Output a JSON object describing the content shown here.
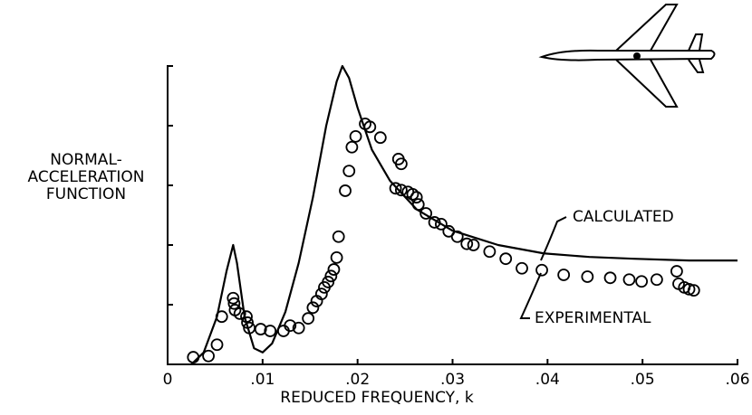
{
  "chart_data": {
    "type": "line",
    "xlabel": "REDUCED FREQUENCY, k",
    "ylabel_lines": [
      "NORMAL-",
      "ACCELERATION",
      "FUNCTION"
    ],
    "xlim": [
      0,
      0.06
    ],
    "ylim": [
      0,
      5
    ],
    "xticks": [
      0,
      {
        "value": 0.01,
        "label": ".01"
      },
      {
        "value": 0.02,
        "label": ".02"
      },
      {
        "value": 0.03,
        "label": ".03"
      },
      {
        "value": 0.04,
        "label": ".04"
      },
      {
        "value": 0.05,
        "label": ".05"
      },
      {
        "value": 0.06,
        "label": ".06"
      }
    ],
    "yticks": [
      0,
      1,
      2,
      3,
      4,
      5
    ],
    "grid": false,
    "series": [
      {
        "name": "CALCULATED",
        "color": "#000000",
        "marker": "none",
        "x": [
          0.0025,
          0.0038,
          0.0052,
          0.0062,
          0.0069,
          0.0073,
          0.0081,
          0.0091,
          0.01,
          0.011,
          0.0124,
          0.0138,
          0.0153,
          0.0167,
          0.0178,
          0.0184,
          0.0191,
          0.02,
          0.0215,
          0.0234,
          0.0262,
          0.03,
          0.0348,
          0.0396,
          0.0444,
          0.0491,
          0.0549,
          0.06
        ],
        "values": [
          0,
          0.2,
          0.8,
          1.56,
          2.0,
          1.7,
          0.8,
          0.27,
          0.2,
          0.35,
          0.88,
          1.7,
          2.8,
          4.0,
          4.74,
          5.0,
          4.8,
          4.3,
          3.6,
          3.08,
          2.6,
          2.24,
          2.0,
          1.86,
          1.8,
          1.77,
          1.74,
          1.74
        ]
      },
      {
        "name": "EXPERIMENTAL",
        "color": "#000000",
        "marker": "circle",
        "x": [
          0.0027,
          0.0043,
          0.0052,
          0.0057,
          0.0069,
          0.007,
          0.0071,
          0.0076,
          0.0083,
          0.0084,
          0.0086,
          0.0098,
          0.0108,
          0.0122,
          0.0129,
          0.0138,
          0.0148,
          0.0153,
          0.0157,
          0.0162,
          0.0165,
          0.0169,
          0.0172,
          0.0175,
          0.0178,
          0.018,
          0.0187,
          0.0191,
          0.0194,
          0.0198,
          0.0208,
          0.0213,
          0.0224,
          0.0243,
          0.0246,
          0.024,
          0.0246,
          0.0253,
          0.0258,
          0.0262,
          0.0264,
          0.0272,
          0.0281,
          0.0288,
          0.0296,
          0.0305,
          0.0315,
          0.0322,
          0.0339,
          0.0356,
          0.0373,
          0.0394,
          0.0417,
          0.0442,
          0.0466,
          0.0486,
          0.0499,
          0.0515,
          0.0536,
          0.0538,
          0.0544,
          0.0549,
          0.0554
        ],
        "values": [
          0.12,
          0.14,
          0.33,
          0.8,
          1.11,
          1.02,
          0.91,
          0.85,
          0.8,
          0.7,
          0.61,
          0.59,
          0.56,
          0.56,
          0.65,
          0.61,
          0.77,
          0.95,
          1.06,
          1.18,
          1.29,
          1.38,
          1.48,
          1.59,
          1.79,
          2.14,
          2.91,
          3.24,
          3.64,
          3.82,
          4.03,
          3.98,
          3.8,
          3.44,
          3.36,
          2.95,
          2.92,
          2.89,
          2.85,
          2.8,
          2.68,
          2.53,
          2.38,
          2.35,
          2.23,
          2.14,
          2.02,
          2.0,
          1.89,
          1.77,
          1.61,
          1.58,
          1.5,
          1.47,
          1.45,
          1.42,
          1.39,
          1.42,
          1.56,
          1.35,
          1.29,
          1.26,
          1.24
        ]
      }
    ]
  }
}
